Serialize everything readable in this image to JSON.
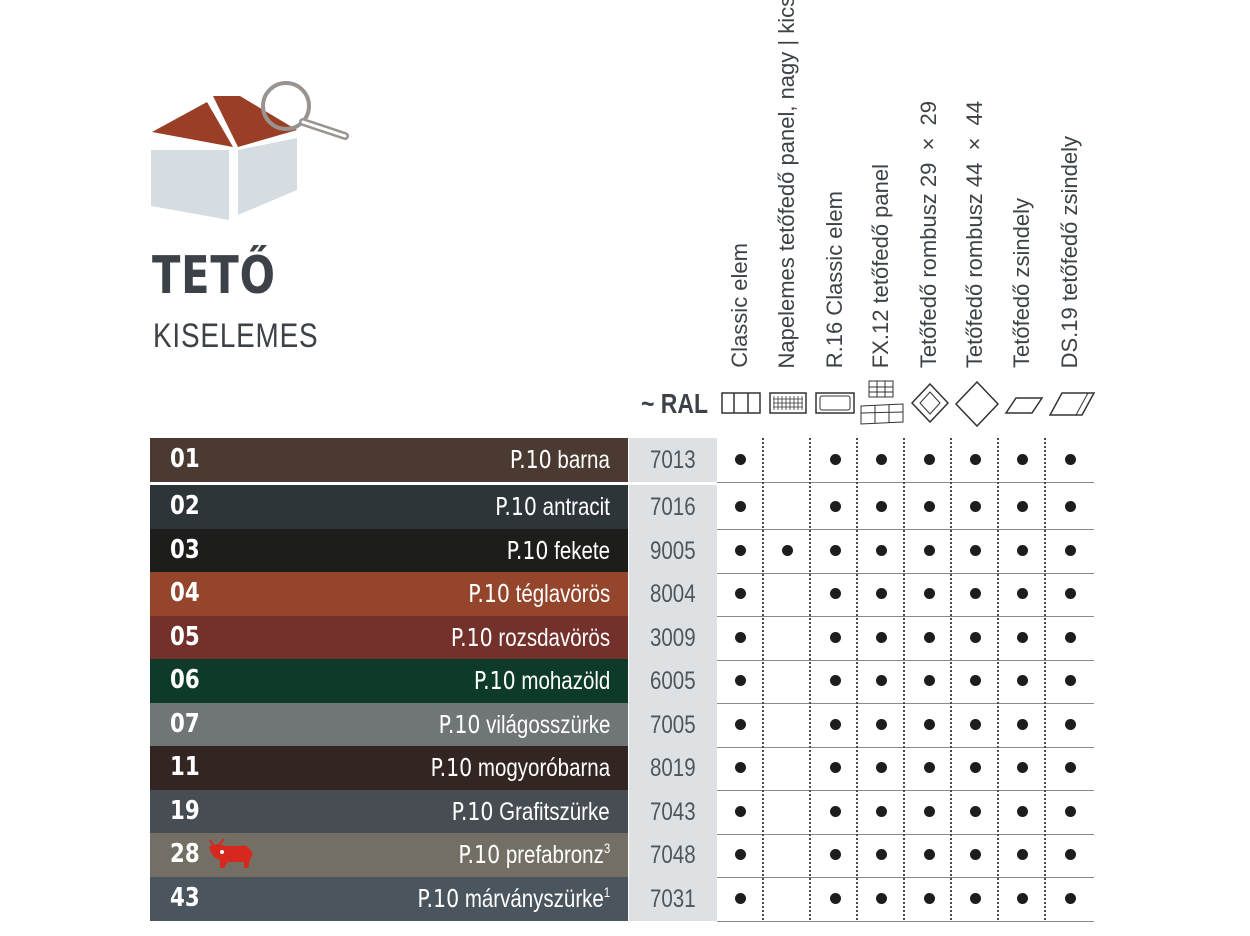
{
  "header": {
    "title": "TETŐ",
    "subtitle": "KISELEMES",
    "ral_label": "~ RAL"
  },
  "columns": [
    {
      "label": "Classic elem",
      "icon": "classic-element-icon"
    },
    {
      "label": "Napelemes tetőfedő panel, nagy | kicsi",
      "icon": "solar-panel-icon"
    },
    {
      "label": "R.16 Classic elem",
      "icon": "r16-classic-icon"
    },
    {
      "label": "FX.12 tetőfedő panel",
      "icon": "fx12-panel-icon"
    },
    {
      "label": "Tetőfedő rombusz 29 × 29",
      "icon": "rhombus-29-icon"
    },
    {
      "label": "Tetőfedő rombusz 44 × 44",
      "icon": "rhombus-44-icon"
    },
    {
      "label": "Tetőfedő zsindely",
      "icon": "shingle-icon"
    },
    {
      "label": "DS.19 tetőfedő zsindely",
      "icon": "ds19-shingle-icon"
    }
  ],
  "rows": [
    {
      "code": "01",
      "prefix": "P.10",
      "name": "barna",
      "sup": "",
      "ral": "7013",
      "color": "#4b3a31",
      "avail": [
        1,
        0,
        1,
        1,
        1,
        1,
        1,
        1
      ]
    },
    {
      "code": "02",
      "prefix": "P.10",
      "name": "antracit",
      "sup": "",
      "ral": "7016",
      "color": "#2e3539",
      "avail": [
        1,
        0,
        1,
        1,
        1,
        1,
        1,
        1
      ]
    },
    {
      "code": "03",
      "prefix": "P.10",
      "name": "fekete",
      "sup": "",
      "ral": "9005",
      "color": "#1d1d1b",
      "avail": [
        1,
        1,
        1,
        1,
        1,
        1,
        1,
        1
      ]
    },
    {
      "code": "04",
      "prefix": "P.10",
      "name": "téglavörös",
      "sup": "",
      "ral": "8004",
      "color": "#94452b",
      "avail": [
        1,
        0,
        1,
        1,
        1,
        1,
        1,
        1
      ]
    },
    {
      "code": "05",
      "prefix": "P.10",
      "name": "rozsdavörös",
      "sup": "",
      "ral": "3009",
      "color": "#74302a",
      "avail": [
        1,
        0,
        1,
        1,
        1,
        1,
        1,
        1
      ]
    },
    {
      "code": "06",
      "prefix": "P.10",
      "name": "mohazöld",
      "sup": "",
      "ral": "6005",
      "color": "#0e3b27",
      "avail": [
        1,
        0,
        1,
        1,
        1,
        1,
        1,
        1
      ]
    },
    {
      "code": "07",
      "prefix": "P.10",
      "name": "világosszürke",
      "sup": "",
      "ral": "7005",
      "color": "#707577",
      "avail": [
        1,
        0,
        1,
        1,
        1,
        1,
        1,
        1
      ]
    },
    {
      "code": "11",
      "prefix": "P.10",
      "name": "mogyoróbarna",
      "sup": "",
      "ral": "8019",
      "color": "#332522",
      "avail": [
        1,
        0,
        1,
        1,
        1,
        1,
        1,
        1
      ]
    },
    {
      "code": "19",
      "prefix": "P.10",
      "name": "Grafitszürke",
      "sup": "",
      "ral": "7043",
      "color": "#474d52",
      "avail": [
        1,
        0,
        1,
        1,
        1,
        1,
        1,
        1
      ]
    },
    {
      "code": "28",
      "prefix": "P.10",
      "name": "prefabronz",
      "sup": "3",
      "ral": "7048",
      "color": "#746f65",
      "avail": [
        1,
        0,
        1,
        1,
        1,
        1,
        1,
        1
      ],
      "badge": "bull-icon"
    },
    {
      "code": "43",
      "prefix": "P.10",
      "name": "márványszürke",
      "sup": "1",
      "ral": "7031",
      "color": "#4b555d",
      "avail": [
        1,
        0,
        1,
        1,
        1,
        1,
        1,
        1
      ]
    }
  ],
  "colors": {
    "roof": "#9a3f26",
    "walls": "#d6dde2",
    "ral_bg": "#dde1e4",
    "bull": "#d7281e"
  }
}
